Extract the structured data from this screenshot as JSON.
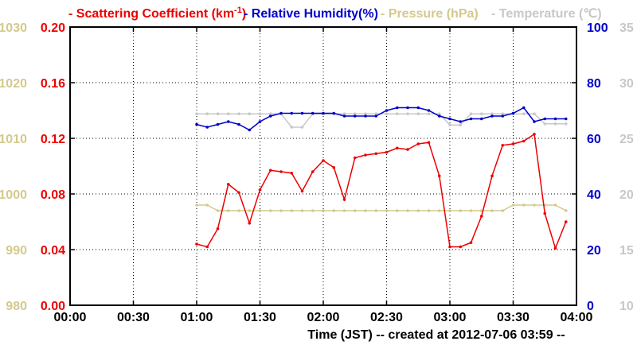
{
  "chart_data": {
    "type": "line",
    "legend": {
      "placement": "top",
      "items": [
        {
          "dash": "-",
          "label": "Scattering Coefficient (km",
          "sup": "-1",
          "suffix": ")",
          "color": "#ee0000"
        },
        {
          "dash": "-",
          "label": "Relative Humidity(%)",
          "color": "#0000cc"
        },
        {
          "dash": "-",
          "label": "Pressure (hPa)",
          "color": "#d4c98c"
        },
        {
          "dash": "-",
          "label": "Temperature (℃)",
          "color": "#c8c8c8"
        }
      ]
    },
    "xlabel": "Time (JST)   -- created at 2012-07-06 03:59 --",
    "x_ticks": [
      "00:00",
      "00:30",
      "01:00",
      "01:30",
      "02:00",
      "02:30",
      "03:00",
      "03:30",
      "04:00"
    ],
    "xlim_minutes": [
      0,
      240
    ],
    "grid": true,
    "axes": {
      "scattering": {
        "side": "left-inner",
        "ylim": [
          0,
          0.2
        ],
        "ticks": [
          "0.00",
          "0.04",
          "0.08",
          "0.12",
          "0.16",
          "0.20"
        ],
        "color": "#ee0000"
      },
      "pressure": {
        "side": "left-outer",
        "ylim": [
          980,
          1030
        ],
        "ticks": [
          "980",
          "990",
          "1000",
          "1010",
          "1020",
          "1030"
        ],
        "color": "#d4c98c"
      },
      "humidity": {
        "side": "right-inner",
        "ylim": [
          0,
          100
        ],
        "ticks": [
          "0",
          "20",
          "40",
          "60",
          "80",
          "100"
        ],
        "color": "#0000cc"
      },
      "temperature": {
        "side": "right-outer",
        "ylim": [
          10,
          35
        ],
        "ticks": [
          "10",
          "15",
          "20",
          "25",
          "30",
          "35"
        ],
        "color": "#c8c8c8"
      }
    },
    "series": [
      {
        "name": "Scattering Coefficient (km-1)",
        "axis": "scattering",
        "color": "#ee0000",
        "x": [
          60,
          65,
          70,
          75,
          80,
          85,
          90,
          95,
          100,
          105,
          110,
          115,
          120,
          125,
          130,
          135,
          140,
          145,
          150,
          155,
          160,
          165,
          170,
          175,
          180,
          185,
          190,
          195,
          200,
          205,
          210,
          215,
          220,
          225,
          230,
          235
        ],
        "y": [
          0.044,
          0.042,
          0.055,
          0.087,
          0.081,
          0.059,
          0.083,
          0.097,
          0.096,
          0.095,
          0.082,
          0.096,
          0.104,
          0.099,
          0.076,
          0.106,
          0.108,
          0.109,
          0.11,
          0.113,
          0.112,
          0.116,
          0.117,
          0.093,
          0.042,
          0.042,
          0.045,
          0.064,
          0.093,
          0.115,
          0.116,
          0.118,
          0.123,
          0.066,
          0.041,
          0.06
        ]
      },
      {
        "name": "Relative Humidity(%)",
        "axis": "humidity",
        "color": "#0000cc",
        "x": [
          60,
          65,
          70,
          75,
          80,
          85,
          90,
          95,
          100,
          105,
          110,
          115,
          120,
          125,
          130,
          135,
          140,
          145,
          150,
          155,
          160,
          165,
          170,
          175,
          180,
          185,
          190,
          195,
          200,
          205,
          210,
          215,
          220,
          225,
          230,
          235
        ],
        "y": [
          65,
          64,
          65,
          66,
          65,
          63,
          66,
          68,
          69,
          69,
          69,
          69,
          69,
          69,
          68,
          68,
          68,
          68,
          70,
          71,
          71,
          71,
          70,
          68,
          67,
          66,
          67,
          67,
          68,
          68,
          69,
          71,
          66,
          67,
          67,
          67
        ]
      },
      {
        "name": "Pressure (hPa)",
        "axis": "pressure",
        "color": "#d4c98c",
        "x": [
          60,
          65,
          70,
          75,
          80,
          85,
          90,
          95,
          100,
          105,
          110,
          115,
          120,
          125,
          130,
          135,
          140,
          145,
          150,
          155,
          160,
          165,
          170,
          175,
          180,
          185,
          190,
          195,
          200,
          205,
          210,
          215,
          220,
          225,
          230,
          235
        ],
        "y": [
          998,
          998,
          997,
          997,
          997,
          997,
          997,
          997,
          997,
          997,
          997,
          997,
          997,
          997,
          997,
          997,
          997,
          997,
          997,
          997,
          997,
          997,
          997,
          997,
          997,
          997,
          997,
          997,
          997,
          997,
          998,
          998,
          998,
          998,
          998,
          997
        ]
      },
      {
        "name": "Temperature (℃)",
        "axis": "temperature",
        "color": "#c8c8c8",
        "x": [
          60,
          65,
          70,
          75,
          80,
          85,
          90,
          95,
          100,
          105,
          110,
          115,
          120,
          125,
          130,
          135,
          140,
          145,
          150,
          155,
          160,
          165,
          170,
          175,
          180,
          185,
          190,
          195,
          200,
          205,
          210,
          215,
          220,
          225,
          230,
          235
        ],
        "y": [
          27.2,
          27.2,
          27.2,
          27.2,
          27.2,
          27.2,
          27.2,
          27.2,
          27.2,
          26,
          26,
          27.2,
          27.2,
          27.2,
          27.2,
          27.2,
          27.2,
          27.2,
          27.2,
          27.2,
          27.2,
          27.2,
          27.2,
          27.2,
          26.2,
          26.2,
          27.2,
          27.2,
          27.2,
          27.2,
          27.2,
          27.2,
          27.2,
          26.3,
          26.3,
          26.3
        ]
      }
    ]
  }
}
